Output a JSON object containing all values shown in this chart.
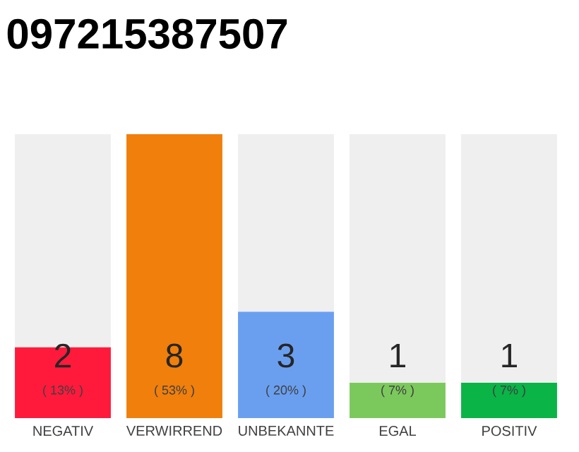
{
  "chart_data": {
    "type": "bar",
    "title": "097215387507",
    "categories": [
      "NEGATIV",
      "VERWIRREND",
      "UNBEKANNTE",
      "EGAL",
      "POSITIV"
    ],
    "stacked": true,
    "series": [
      {
        "colors": [
          "#ff1a3c",
          "#f07f0c",
          "#6a9ff0",
          "#7bc95c",
          "#0ab447"
        ],
        "values": [
          2,
          8,
          3,
          1,
          1
        ],
        "value_labels": [
          "2",
          "8",
          "3",
          "1",
          "1"
        ]
      },
      {
        "color": "#efefef",
        "values": [
          6,
          0,
          5,
          7,
          7
        ]
      }
    ],
    "annotations": [
      "( 13% )",
      "( 53% )",
      "( 20% )",
      "( 7% )",
      "( 7% )"
    ],
    "ylim": [
      0,
      8
    ],
    "tick_labels": "x",
    "grid": false
  }
}
